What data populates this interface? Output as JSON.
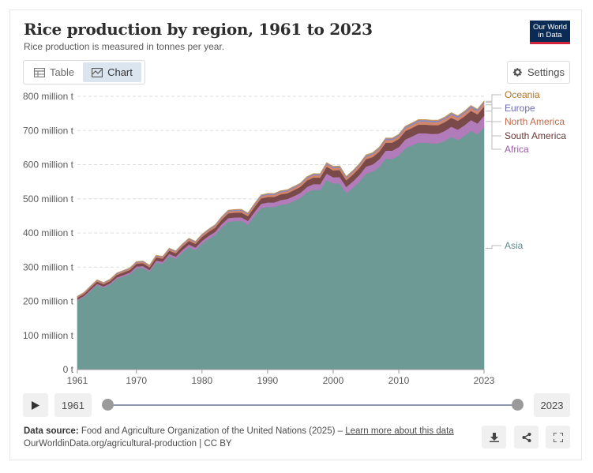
{
  "header": {
    "title": "Rice production by region, 1961 to 2023",
    "subtitle": "Rice production is measured in tonnes per year.",
    "logo_line1": "Our World",
    "logo_line2": "in Data"
  },
  "tabs": {
    "table_label": "Table",
    "chart_label": "Chart",
    "active": "Chart"
  },
  "settings_label": "Settings",
  "chart_data": {
    "type": "area",
    "stacked": true,
    "x_ticks": [
      "1961",
      "1970",
      "1980",
      "1990",
      "2000",
      "2010",
      "2023"
    ],
    "y_ticks": [
      "0 t",
      "100 million t",
      "200 million t",
      "300 million t",
      "400 million t",
      "500 million t",
      "600 million t",
      "700 million t",
      "800 million t"
    ],
    "ylim": [
      0,
      800000000
    ],
    "xlim": [
      1961,
      2023
    ],
    "grid": "horizontal dashed",
    "legend_placement": "right, labels at series ends",
    "totals": {
      "x": [
        1961,
        1962,
        1963,
        1964,
        1965,
        1966,
        1967,
        1968,
        1969,
        1970,
        1971,
        1972,
        1973,
        1974,
        1975,
        1976,
        1977,
        1978,
        1979,
        1980,
        1981,
        1982,
        1983,
        1984,
        1985,
        1986,
        1987,
        1988,
        1989,
        1990,
        1991,
        1992,
        1993,
        1994,
        1995,
        1996,
        1997,
        1998,
        1999,
        2000,
        2001,
        2002,
        2003,
        2004,
        2005,
        2006,
        2007,
        2008,
        2009,
        2010,
        2011,
        2012,
        2013,
        2014,
        2015,
        2016,
        2017,
        2018,
        2019,
        2020,
        2021,
        2022,
        2023
      ],
      "values": [
        215000000,
        226000000,
        245000000,
        263000000,
        255000000,
        265000000,
        283000000,
        290000000,
        298000000,
        316000000,
        318000000,
        306000000,
        335000000,
        332000000,
        356000000,
        348000000,
        368000000,
        385000000,
        376000000,
        397000000,
        412000000,
        425000000,
        449000000,
        468000000,
        470000000,
        471000000,
        460000000,
        488000000,
        513000000,
        518000000,
        518000000,
        526000000,
        529000000,
        539000000,
        549000000,
        568000000,
        577000000,
        577000000,
        610000000,
        599000000,
        600000000,
        570000000,
        587000000,
        608000000,
        634000000,
        641000000,
        657000000,
        685000000,
        685000000,
        697000000,
        721000000,
        731000000,
        741000000,
        742000000,
        740000000,
        741000000,
        750000000,
        764000000,
        755000000,
        769000000,
        786000000,
        776000000,
        800000000
      ]
    },
    "series": [
      {
        "name": "Asia",
        "color": "#6e9a96",
        "share": [
          0.943,
          0.943,
          0.942,
          0.942,
          0.941,
          0.941,
          0.94,
          0.94,
          0.939,
          0.939,
          0.938,
          0.937,
          0.936,
          0.935,
          0.934,
          0.933,
          0.933,
          0.932,
          0.931,
          0.93,
          0.929,
          0.928,
          0.927,
          0.926,
          0.925,
          0.924,
          0.923,
          0.922,
          0.921,
          0.92,
          0.919,
          0.918,
          0.917,
          0.916,
          0.915,
          0.914,
          0.913,
          0.912,
          0.911,
          0.91,
          0.909,
          0.908,
          0.907,
          0.906,
          0.905,
          0.904,
          0.903,
          0.902,
          0.901,
          0.9,
          0.899,
          0.898,
          0.897,
          0.896,
          0.895,
          0.894,
          0.893,
          0.892,
          0.891,
          0.89,
          0.889,
          0.888,
          0.887
        ]
      },
      {
        "name": "Africa",
        "color": "#b27bba",
        "share": [
          0.012,
          0.012,
          0.013,
          0.013,
          0.014,
          0.014,
          0.014,
          0.015,
          0.015,
          0.016,
          0.016,
          0.016,
          0.017,
          0.017,
          0.018,
          0.018,
          0.019,
          0.019,
          0.02,
          0.02,
          0.021,
          0.021,
          0.022,
          0.022,
          0.023,
          0.023,
          0.024,
          0.024,
          0.025,
          0.025,
          0.026,
          0.026,
          0.027,
          0.027,
          0.028,
          0.028,
          0.029,
          0.029,
          0.03,
          0.03,
          0.031,
          0.031,
          0.032,
          0.032,
          0.033,
          0.033,
          0.034,
          0.034,
          0.035,
          0.035,
          0.036,
          0.036,
          0.037,
          0.037,
          0.038,
          0.038,
          0.039,
          0.039,
          0.04,
          0.04,
          0.041,
          0.041,
          0.042
        ]
      },
      {
        "name": "South America",
        "color": "#7a4a4a",
        "share": [
          0.025,
          0.025,
          0.025,
          0.025,
          0.025,
          0.025,
          0.026,
          0.026,
          0.026,
          0.026,
          0.026,
          0.027,
          0.027,
          0.027,
          0.027,
          0.028,
          0.028,
          0.028,
          0.028,
          0.029,
          0.029,
          0.029,
          0.029,
          0.03,
          0.03,
          0.03,
          0.03,
          0.031,
          0.031,
          0.031,
          0.031,
          0.032,
          0.032,
          0.032,
          0.032,
          0.033,
          0.033,
          0.033,
          0.033,
          0.034,
          0.034,
          0.034,
          0.034,
          0.034,
          0.034,
          0.034,
          0.034,
          0.034,
          0.034,
          0.034,
          0.034,
          0.034,
          0.034,
          0.034,
          0.034,
          0.034,
          0.034,
          0.034,
          0.034,
          0.034,
          0.034,
          0.034,
          0.034
        ]
      },
      {
        "name": "North America",
        "color": "#d2866a",
        "share": [
          0.012,
          0.012,
          0.012,
          0.012,
          0.012,
          0.012,
          0.012,
          0.012,
          0.012,
          0.012,
          0.012,
          0.012,
          0.012,
          0.012,
          0.012,
          0.012,
          0.012,
          0.012,
          0.012,
          0.012,
          0.012,
          0.012,
          0.012,
          0.012,
          0.012,
          0.012,
          0.012,
          0.012,
          0.012,
          0.012,
          0.012,
          0.012,
          0.012,
          0.012,
          0.012,
          0.012,
          0.012,
          0.012,
          0.012,
          0.012,
          0.012,
          0.012,
          0.012,
          0.012,
          0.012,
          0.012,
          0.012,
          0.012,
          0.012,
          0.012,
          0.012,
          0.012,
          0.012,
          0.012,
          0.012,
          0.012,
          0.012,
          0.012,
          0.012,
          0.012,
          0.012,
          0.012,
          0.012
        ]
      },
      {
        "name": "Europe",
        "color": "#8a87c4",
        "share": [
          0.006,
          0.006,
          0.006,
          0.006,
          0.006,
          0.006,
          0.006,
          0.006,
          0.006,
          0.006,
          0.006,
          0.006,
          0.006,
          0.006,
          0.006,
          0.006,
          0.006,
          0.006,
          0.006,
          0.006,
          0.006,
          0.006,
          0.006,
          0.006,
          0.006,
          0.006,
          0.006,
          0.006,
          0.006,
          0.006,
          0.006,
          0.006,
          0.006,
          0.006,
          0.006,
          0.006,
          0.006,
          0.006,
          0.006,
          0.006,
          0.006,
          0.006,
          0.006,
          0.006,
          0.006,
          0.006,
          0.006,
          0.006,
          0.006,
          0.006,
          0.006,
          0.006,
          0.006,
          0.006,
          0.006,
          0.006,
          0.006,
          0.006,
          0.006,
          0.006,
          0.006,
          0.006,
          0.006
        ]
      },
      {
        "name": "Oceania",
        "color": "#c49a54",
        "share": [
          0.002,
          0.002,
          0.002,
          0.002,
          0.002,
          0.002,
          0.002,
          0.002,
          0.002,
          0.002,
          0.002,
          0.002,
          0.002,
          0.002,
          0.002,
          0.002,
          0.002,
          0.002,
          0.002,
          0.002,
          0.002,
          0.002,
          0.002,
          0.002,
          0.002,
          0.002,
          0.002,
          0.002,
          0.002,
          0.002,
          0.002,
          0.002,
          0.002,
          0.002,
          0.002,
          0.002,
          0.002,
          0.002,
          0.002,
          0.002,
          0.002,
          0.002,
          0.002,
          0.002,
          0.002,
          0.002,
          0.002,
          0.002,
          0.002,
          0.002,
          0.002,
          0.002,
          0.002,
          0.002,
          0.002,
          0.002,
          0.002,
          0.002,
          0.002,
          0.002,
          0.002,
          0.002,
          0.002
        ]
      }
    ],
    "legend_order": [
      "Oceania",
      "Europe",
      "North America",
      "South America",
      "Africa",
      "Asia"
    ]
  },
  "timeline": {
    "play_label": "play",
    "start_label": "1961",
    "end_label": "2023",
    "start_value": 1961,
    "end_value": 2023
  },
  "footer": {
    "source_prefix": "Data source:",
    "source_text": " Food and Agriculture Organization of the United Nations (2025) – ",
    "learn_more": "Learn more about this data",
    "url": "OurWorldinData.org/agricultural-production | CC BY"
  }
}
